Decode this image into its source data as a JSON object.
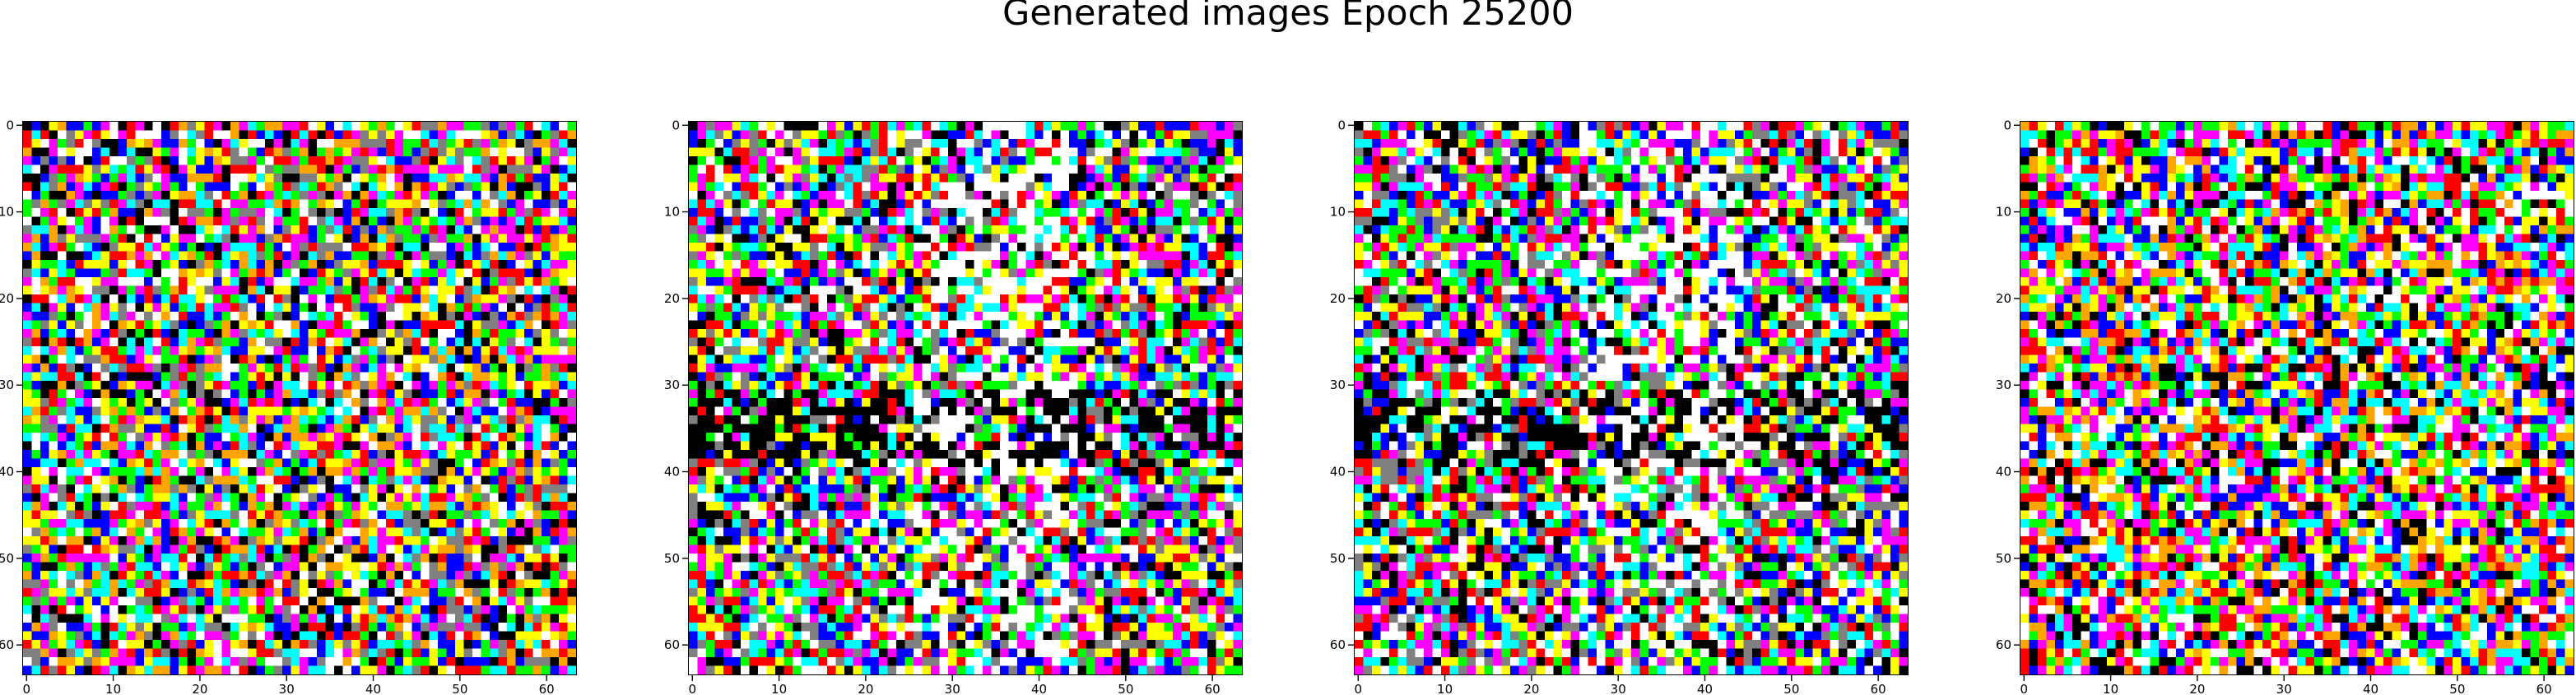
{
  "figure": {
    "title": "Generated images Epoch 25200"
  },
  "chart_data": [
    {
      "type": "heatmap",
      "title": "",
      "xlabel": "",
      "ylabel": "",
      "xlim": [
        -0.5,
        63.5
      ],
      "ylim": [
        63.5,
        -0.5
      ],
      "grid": false,
      "x_ticks": [
        0,
        10,
        20,
        30,
        40,
        50,
        60
      ],
      "y_ticks": [
        0,
        10,
        20,
        30,
        40,
        50,
        60
      ],
      "pixel_grid": [
        64,
        64
      ],
      "palette": [
        "#ff0000",
        "#00ff00",
        "#0000ff",
        "#ffff00",
        "#ff00ff",
        "#00ffff",
        "#ffffff",
        "#000000",
        "#ffa500",
        "#808080"
      ]
    },
    {
      "type": "heatmap",
      "title": "",
      "xlabel": "",
      "ylabel": "",
      "xlim": [
        -0.5,
        63.5
      ],
      "ylim": [
        63.5,
        -0.5
      ],
      "grid": false,
      "x_ticks": [
        0,
        10,
        20,
        30,
        40,
        50,
        60
      ],
      "y_ticks": [
        0,
        10,
        20,
        30,
        40,
        50,
        60
      ],
      "pixel_grid": [
        64,
        64
      ],
      "palette": [
        "#ff0000",
        "#00ff00",
        "#0000ff",
        "#ffff00",
        "#ff00ff",
        "#00ffff",
        "#ffffff",
        "#000000",
        "#808080"
      ]
    },
    {
      "type": "heatmap",
      "title": "",
      "xlabel": "",
      "ylabel": "",
      "xlim": [
        -0.5,
        63.5
      ],
      "ylim": [
        63.5,
        -0.5
      ],
      "grid": false,
      "x_ticks": [
        0,
        10,
        20,
        30,
        40,
        50,
        60
      ],
      "y_ticks": [
        0,
        10,
        20,
        30,
        40,
        50,
        60
      ],
      "pixel_grid": [
        64,
        64
      ],
      "palette": [
        "#ff0000",
        "#00ff00",
        "#0000ff",
        "#ffff00",
        "#ff00ff",
        "#00ffff",
        "#ffffff",
        "#000000",
        "#808080"
      ]
    },
    {
      "type": "heatmap",
      "title": "",
      "xlabel": "",
      "ylabel": "",
      "xlim": [
        -0.5,
        63.5
      ],
      "ylim": [
        63.5,
        -0.5
      ],
      "grid": false,
      "x_ticks": [
        0,
        10,
        20,
        30,
        40,
        50,
        60
      ],
      "y_ticks": [
        0,
        10,
        20,
        30,
        40,
        50,
        60
      ],
      "pixel_grid": [
        64,
        64
      ],
      "palette": [
        "#ff0000",
        "#00ff00",
        "#0000ff",
        "#ffff00",
        "#ff00ff",
        "#00ffff",
        "#ffffff",
        "#000000",
        "#ffa500"
      ]
    }
  ]
}
